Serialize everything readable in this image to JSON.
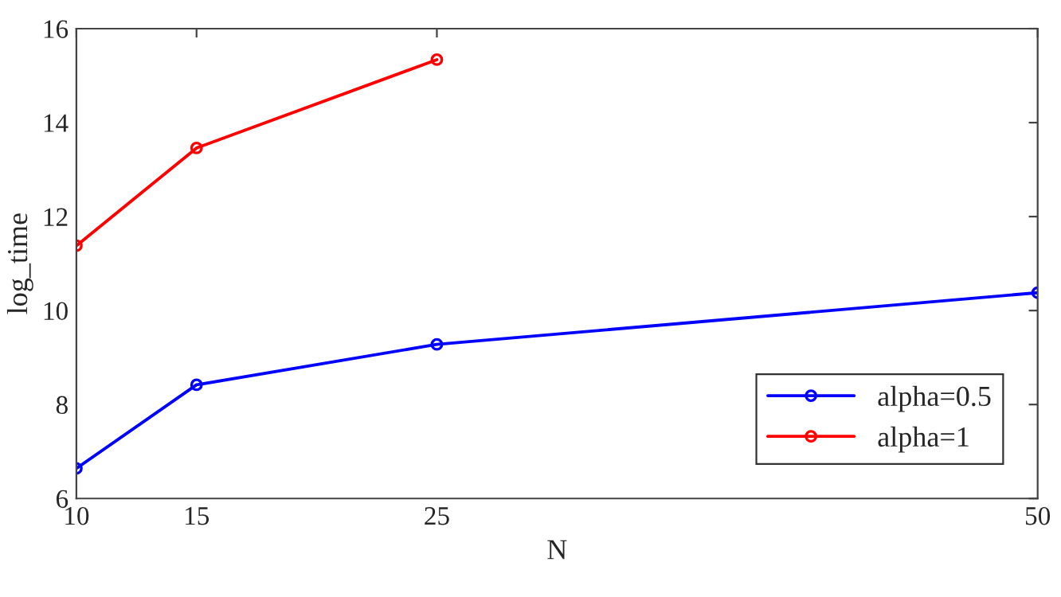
{
  "chart_data": {
    "type": "line",
    "xlabel": "N",
    "ylabel": "log_time",
    "x": [
      10,
      15,
      25,
      50
    ],
    "series": [
      {
        "name": "alpha=0.5",
        "color": "#0000ff",
        "values": [
          6.64,
          8.42,
          9.28,
          10.38
        ]
      },
      {
        "name": "alpha=1",
        "color": "#ff0000",
        "values": [
          11.38,
          13.46,
          15.34,
          null
        ]
      }
    ],
    "xlim": [
      10,
      50
    ],
    "xticks": [
      10,
      15,
      25,
      50
    ],
    "ylim": [
      6,
      16
    ],
    "yticks": [
      6,
      8,
      10,
      12,
      14,
      16
    ],
    "grid": false,
    "legend": "bottom right",
    "marker": "circle",
    "line_style": "solid"
  }
}
